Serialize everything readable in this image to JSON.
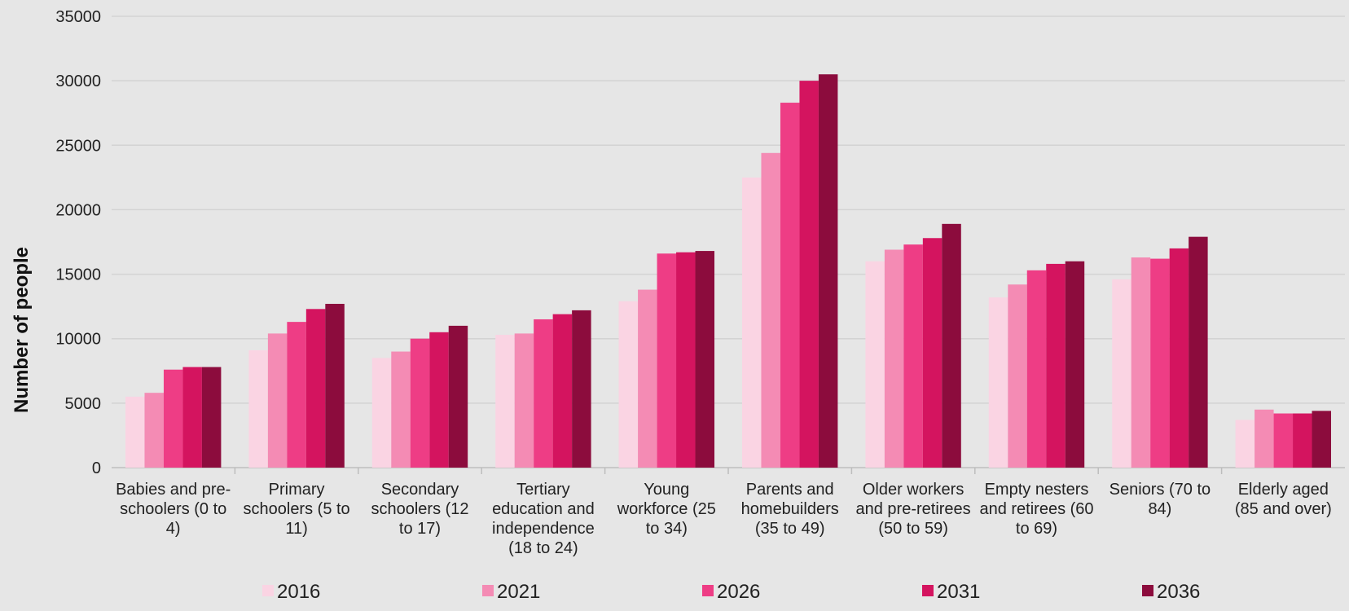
{
  "chart_data": {
    "type": "bar",
    "title": "",
    "xlabel": "",
    "ylabel": "Number of people",
    "ylim": [
      0,
      35000
    ],
    "yticks": [
      "0",
      "5000",
      "10000",
      "15000",
      "20000",
      "25000",
      "30000",
      "35000"
    ],
    "grid": "horizontal",
    "legend_position": "bottom",
    "categories": [
      [
        "Babies and pre-",
        "schoolers (0 to",
        "4)"
      ],
      [
        "Primary",
        "schoolers (5 to",
        "11)"
      ],
      [
        "Secondary",
        "schoolers (12",
        "to 17)"
      ],
      [
        "Tertiary",
        "education and",
        "independence",
        "(18 to 24)"
      ],
      [
        "Young",
        "workforce (25",
        "to 34)"
      ],
      [
        "Parents and",
        "homebuilders",
        "(35 to 49)"
      ],
      [
        "Older workers",
        "and pre-retirees",
        "(50 to 59)"
      ],
      [
        "Empty nesters",
        "and retirees (60",
        "to 69)"
      ],
      [
        "Seniors (70 to",
        "84)"
      ],
      [
        "Elderly aged",
        "(85 and over)"
      ]
    ],
    "series": [
      {
        "name": "2016",
        "color": "#fad4e3",
        "values": [
          5500,
          9100,
          8500,
          10300,
          12900,
          22500,
          16000,
          13200,
          14600,
          3700
        ]
      },
      {
        "name": "2021",
        "color": "#f48bb4",
        "values": [
          5800,
          10400,
          9000,
          10400,
          13800,
          24400,
          16900,
          14200,
          16300,
          4500
        ]
      },
      {
        "name": "2026",
        "color": "#ee3d85",
        "values": [
          7600,
          11300,
          10000,
          11500,
          16600,
          28300,
          17300,
          15300,
          16200,
          4200
        ]
      },
      {
        "name": "2031",
        "color": "#d4145f",
        "values": [
          7800,
          12300,
          10500,
          11900,
          16700,
          30000,
          17800,
          15800,
          17000,
          4200
        ]
      },
      {
        "name": "2036",
        "color": "#8c0c3d",
        "values": [
          7800,
          12700,
          11000,
          12200,
          16800,
          30500,
          18900,
          16000,
          17900,
          4400
        ]
      }
    ]
  }
}
